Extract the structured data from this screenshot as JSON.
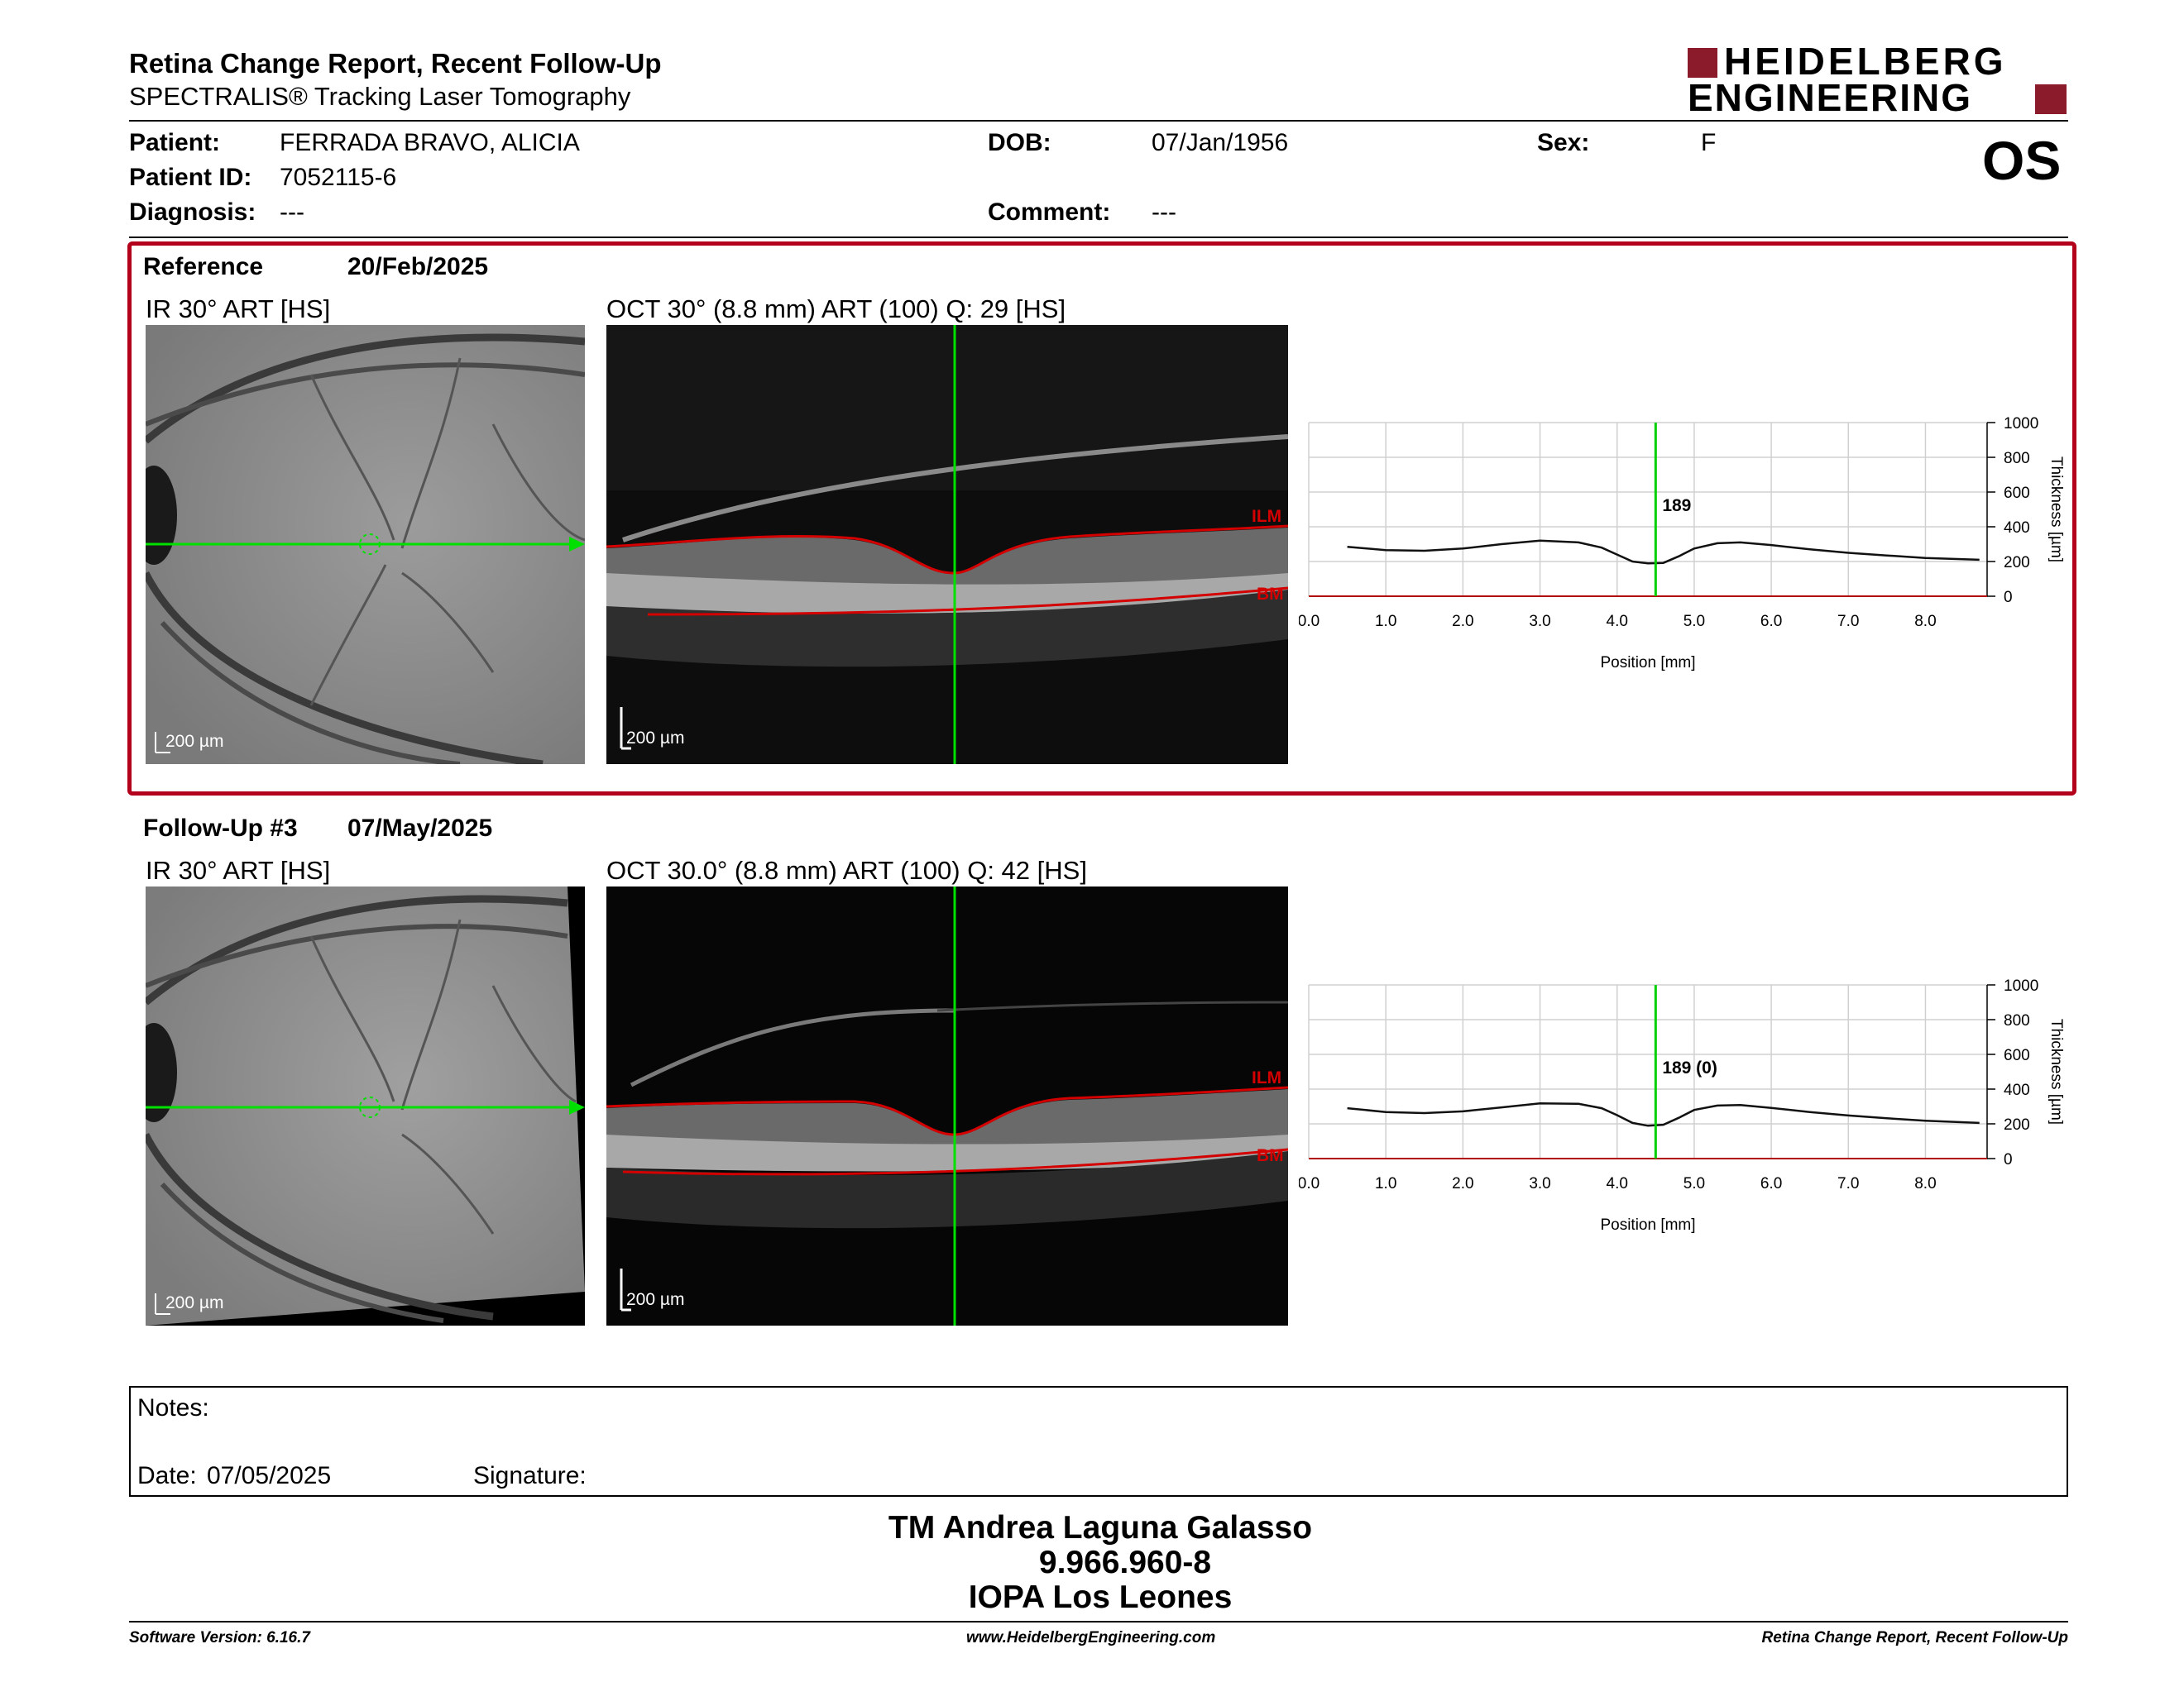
{
  "header": {
    "title": "Retina Change Report, Recent Follow-Up",
    "subtitle": "SPECTRALIS® Tracking Laser Tomography",
    "logo_line1": "HEIDELBERG",
    "logo_line2": "ENGINEERING",
    "brand_color": "#8b1a2b"
  },
  "patient": {
    "name_label": "Patient:",
    "name": "FERRADA BRAVO, ALICIA",
    "id_label": "Patient ID:",
    "id": "7052115-6",
    "diagnosis_label": "Diagnosis:",
    "diagnosis": "---",
    "dob_label": "DOB:",
    "dob": "07/Jan/1956",
    "comment_label": "Comment:",
    "comment": "---",
    "sex_label": "Sex:",
    "sex": "F",
    "eye": "OS"
  },
  "reference": {
    "label": "Reference",
    "date": "20/Feb/2025",
    "ir_caption": "IR 30° ART [HS]",
    "oct_caption": "OCT 30° (8.8 mm) ART (100) Q: 29 [HS]",
    "scale": "200 µm",
    "ilm": "ILM",
    "bm": "BM",
    "thickness_marker": "189"
  },
  "followup": {
    "label": "Follow-Up #3",
    "date": "07/May/2025",
    "ir_caption": "IR 30° ART [HS]",
    "oct_caption": "OCT 30.0° (8.8 mm) ART (100) Q: 42 [HS]",
    "scale": "200 µm",
    "ilm": "ILM",
    "bm": "BM",
    "thickness_marker": "189 (0)"
  },
  "chart_data": [
    {
      "type": "line",
      "xlabel": "Position [mm]",
      "ylabel": "Thickness [µm]",
      "xlim": [
        0,
        8.8
      ],
      "ylim": [
        0,
        1000
      ],
      "x_ticks": [
        "0.0",
        "1.0",
        "2.0",
        "3.0",
        "4.0",
        "5.0",
        "6.0",
        "7.0",
        "8.0"
      ],
      "y_ticks": [
        "0",
        "200",
        "400",
        "600",
        "800",
        "1000"
      ],
      "marker_x": 4.5,
      "series": [
        {
          "x": [
            0.5,
            1.0,
            1.5,
            2.0,
            2.5,
            3.0,
            3.5,
            3.8,
            4.0,
            4.2,
            4.4,
            4.6,
            4.8,
            5.0,
            5.3,
            5.6,
            6.0,
            6.5,
            7.0,
            7.5,
            8.0,
            8.7
          ],
          "values": [
            285,
            265,
            262,
            275,
            300,
            320,
            310,
            280,
            240,
            200,
            189,
            192,
            230,
            275,
            305,
            310,
            295,
            270,
            250,
            235,
            220,
            210
          ]
        }
      ]
    },
    {
      "type": "line",
      "xlabel": "Position [mm]",
      "ylabel": "Thickness [µm]",
      "xlim": [
        0,
        8.8
      ],
      "ylim": [
        0,
        1000
      ],
      "x_ticks": [
        "0.0",
        "1.0",
        "2.0",
        "3.0",
        "4.0",
        "5.0",
        "6.0",
        "7.0",
        "8.0"
      ],
      "y_ticks": [
        "0",
        "200",
        "400",
        "600",
        "800",
        "1000"
      ],
      "marker_x": 4.5,
      "series": [
        {
          "x": [
            0.5,
            1.0,
            1.5,
            2.0,
            2.5,
            3.0,
            3.5,
            3.8,
            4.0,
            4.2,
            4.4,
            4.6,
            4.8,
            5.0,
            5.3,
            5.6,
            6.0,
            6.5,
            7.0,
            7.5,
            8.0,
            8.7
          ],
          "values": [
            290,
            268,
            262,
            272,
            295,
            318,
            315,
            290,
            250,
            205,
            189,
            195,
            235,
            280,
            305,
            308,
            292,
            268,
            248,
            232,
            218,
            205
          ]
        }
      ]
    }
  ],
  "notes": {
    "label": "Notes:",
    "date_label": "Date:",
    "date": "07/05/2025",
    "signature_label": "Signature:"
  },
  "signatory": {
    "name": "TM Andrea Laguna Galasso",
    "rut": "9.966.960-8",
    "institution": "IOPA Los Leones"
  },
  "footer": {
    "software": "Software Version: 6.16.7",
    "url": "www.HeidelbergEngineering.com",
    "report": "Retina Change Report, Recent Follow-Up"
  }
}
